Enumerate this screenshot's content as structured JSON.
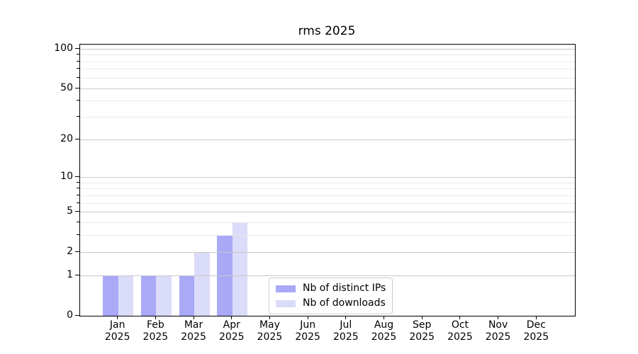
{
  "figure_title": "rms 2025",
  "chart_data": {
    "type": "bar",
    "title": "rms 2025",
    "x_months": [
      "Jan",
      "Feb",
      "Mar",
      "Apr",
      "May",
      "Jun",
      "Jul",
      "Aug",
      "Sep",
      "Oct",
      "Nov",
      "Dec"
    ],
    "x_year": "2025",
    "categories": [
      "Jan 2025",
      "Feb 2025",
      "Mar 2025",
      "Apr 2025",
      "May 2025",
      "Jun 2025",
      "Jul 2025",
      "Aug 2025",
      "Sep 2025",
      "Oct 2025",
      "Nov 2025",
      "Dec 2025"
    ],
    "series": [
      {
        "name": "Nb of distinct IPs",
        "color": "#a9a9f7",
        "values": [
          1,
          1,
          1,
          3,
          0,
          0,
          0,
          0,
          0,
          0,
          0,
          0
        ]
      },
      {
        "name": "Nb of downloads",
        "color": "#dbdbfa",
        "values": [
          1,
          1,
          2,
          4,
          0,
          0,
          0,
          0,
          0,
          0,
          0,
          0
        ]
      }
    ],
    "yscale": "log1p",
    "ylim": [
      0,
      108
    ],
    "y_major_ticks": [
      0,
      1,
      2,
      5,
      10,
      20,
      50,
      100
    ],
    "y_minor_ticks": [
      3,
      4,
      6,
      7,
      8,
      9,
      30,
      40,
      60,
      70,
      80,
      90
    ],
    "grid": true,
    "legend": {
      "position": "lower-center-right"
    },
    "colors": {
      "major_grid": "#c8c8c8",
      "minor_grid": "#eaeaea",
      "axis": "#000000",
      "background": "#ffffff",
      "text": "#000000"
    }
  }
}
